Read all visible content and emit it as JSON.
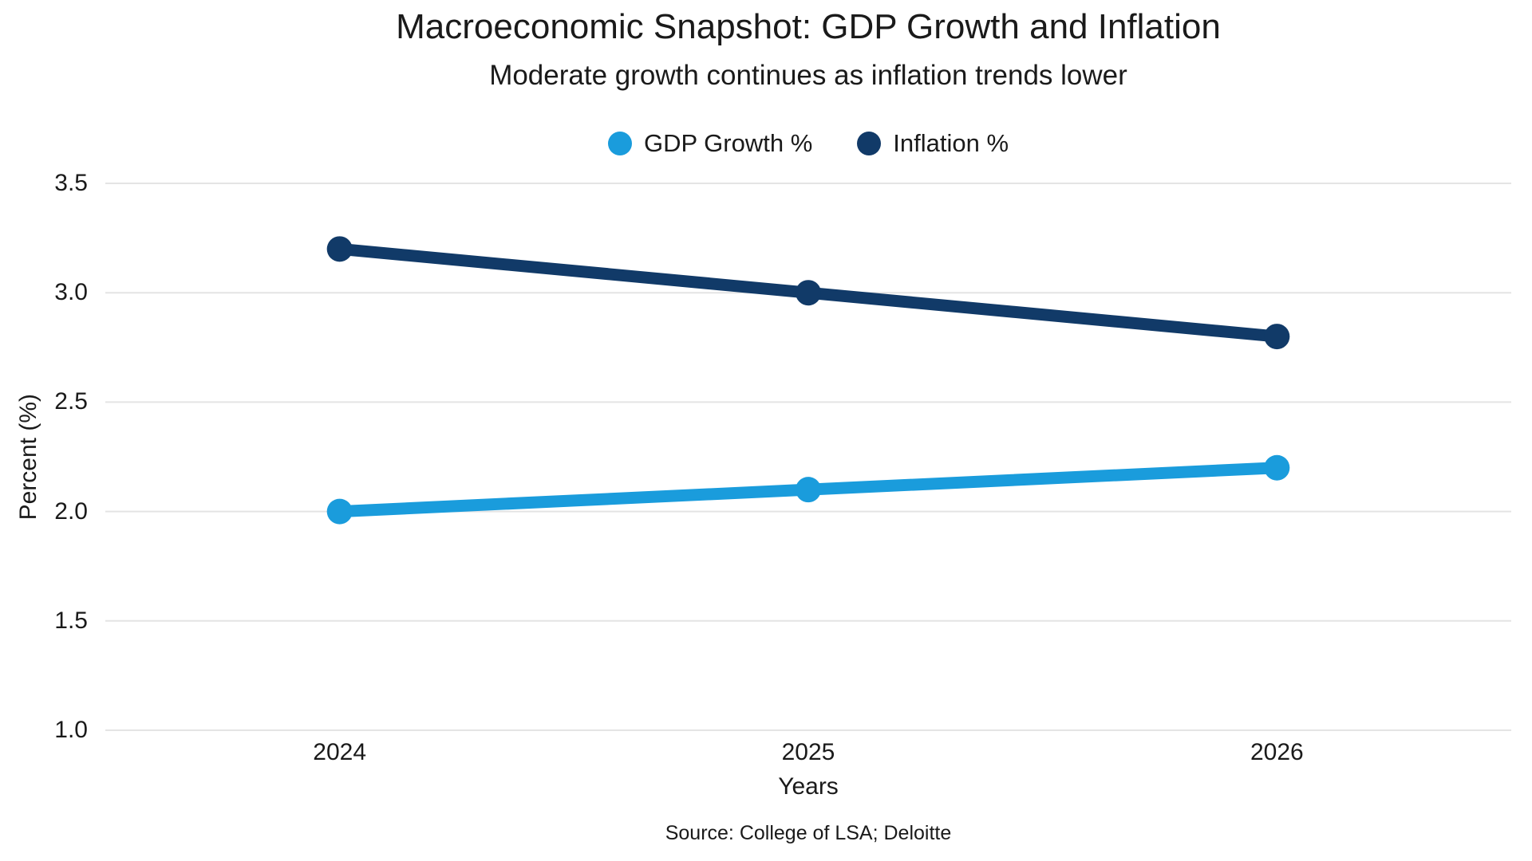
{
  "chart": {
    "title": "Macroeconomic Snapshot: GDP Growth and Inflation",
    "subtitle": "Moderate growth continues as inflation trends lower",
    "source": "Source: College of LSA; Deloitte"
  },
  "chart_data": {
    "type": "line",
    "categories": [
      "2024",
      "2025",
      "2026"
    ],
    "series": [
      {
        "name": "GDP Growth %",
        "values": [
          2.0,
          2.1,
          2.2
        ],
        "color": "#1a9cdc"
      },
      {
        "name": "Inflation %",
        "values": [
          3.2,
          3.0,
          2.8
        ],
        "color": "#113a68"
      }
    ],
    "xlabel": "Years",
    "ylabel": "Percent (%)",
    "ylim": [
      1.0,
      3.5
    ],
    "yticks": [
      "1.0",
      "1.5",
      "2.0",
      "2.5",
      "3.0",
      "3.5"
    ],
    "grid": true,
    "gridline_color": "#e4e4e4",
    "legend_position": "top",
    "line_width": 15,
    "marker_radius": 16,
    "background": "#ffffff",
    "text_color": "#1a1a1a"
  }
}
